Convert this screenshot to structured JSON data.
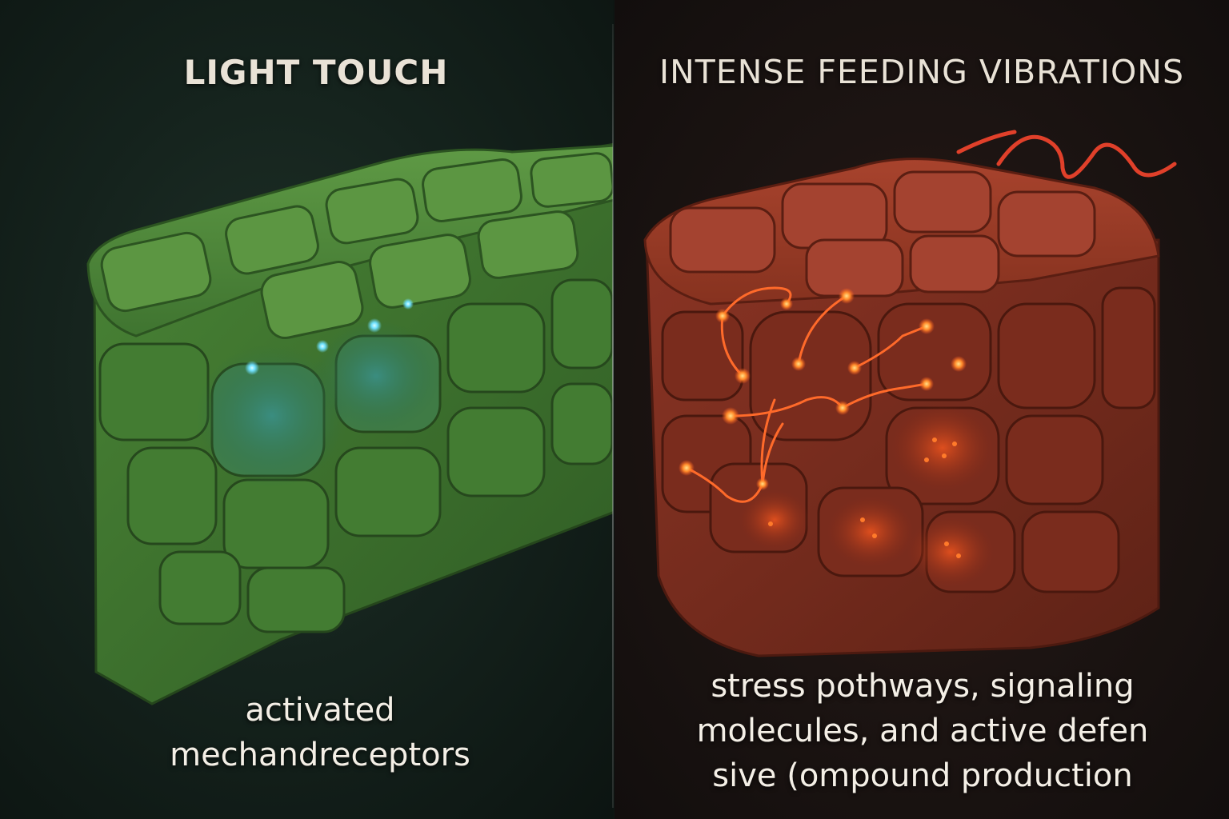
{
  "left_panel": {
    "heading": "LIGHT TOUCH",
    "caption_lines": [
      "activated",
      "mechandreceptors"
    ],
    "tissue_color": "#4f8a3a",
    "highlight_color": "#6fe0ff"
  },
  "right_panel": {
    "heading": "INTENSE FEEDING VIBRATIONS",
    "caption_lines": [
      "stress pothways, signaling",
      "molecules, and active defen",
      "sive (ompound production"
    ],
    "tissue_color": "#8e3525",
    "signal_color": "#ff6a2a"
  }
}
